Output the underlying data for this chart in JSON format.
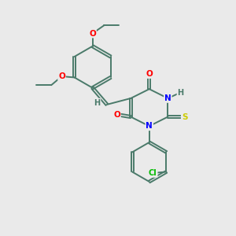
{
  "background_color": "#eaeaea",
  "bond_color": "#4a7a6a",
  "bond_width": 1.4,
  "atom_colors": {
    "O": "#ff0000",
    "N": "#0000ff",
    "S": "#cccc00",
    "Cl": "#00bb00",
    "H": "#4a7a6a",
    "C": "#4a7a6a"
  },
  "font_size": 7.5,
  "figsize": [
    3.0,
    3.0
  ],
  "dpi": 100
}
